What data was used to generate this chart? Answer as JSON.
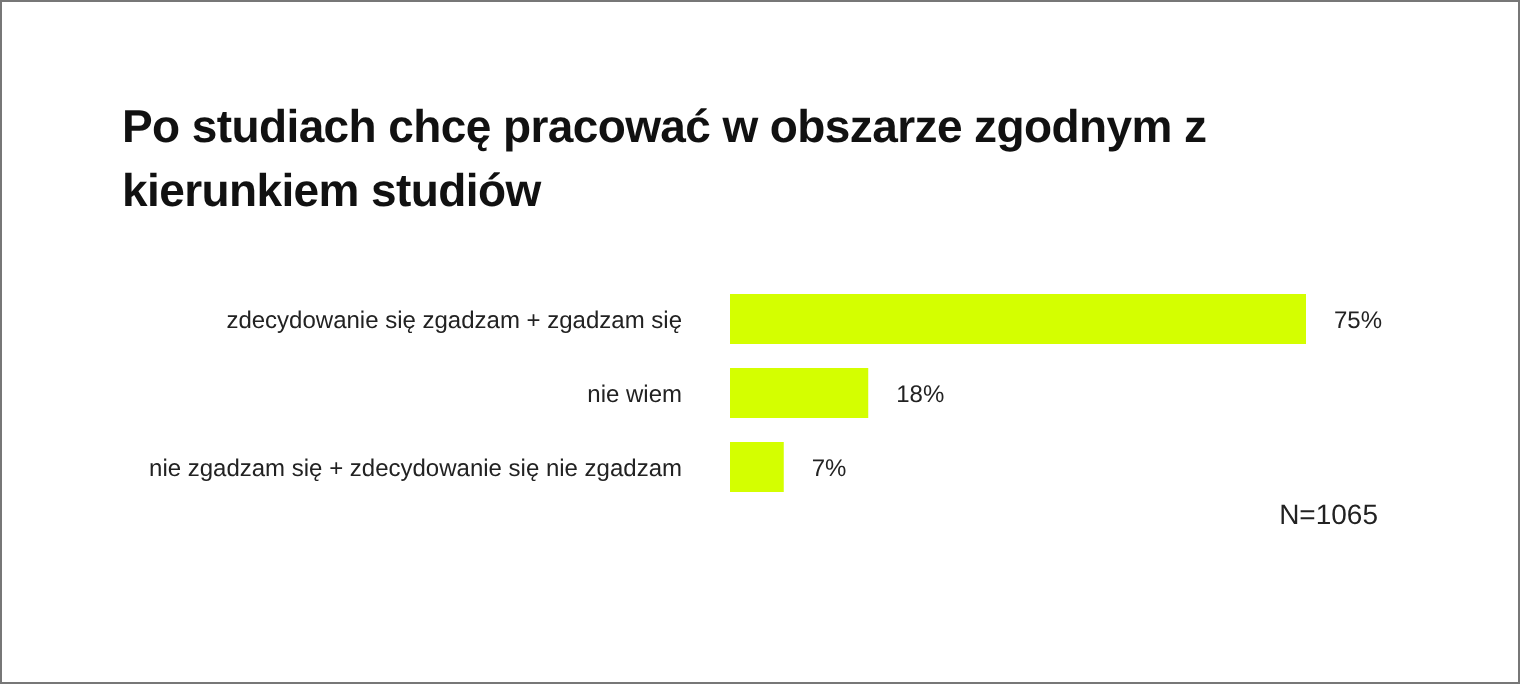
{
  "chart_data": {
    "type": "bar",
    "orientation": "horizontal",
    "title": "Po studiach chcę pracować w obszarze zgodnym z kierunkiem studiów",
    "categories": [
      "zdecydowanie się zgadzam + zgadzam się",
      "nie wiem",
      "nie zgadzam się + zdecydowanie się nie zgadzam"
    ],
    "values": [
      75,
      18,
      7
    ],
    "value_labels": [
      "75%",
      "18%",
      "7%"
    ],
    "color": "#d4ff00",
    "tick_labels": "y",
    "annotations": [
      "N=1065"
    ]
  }
}
